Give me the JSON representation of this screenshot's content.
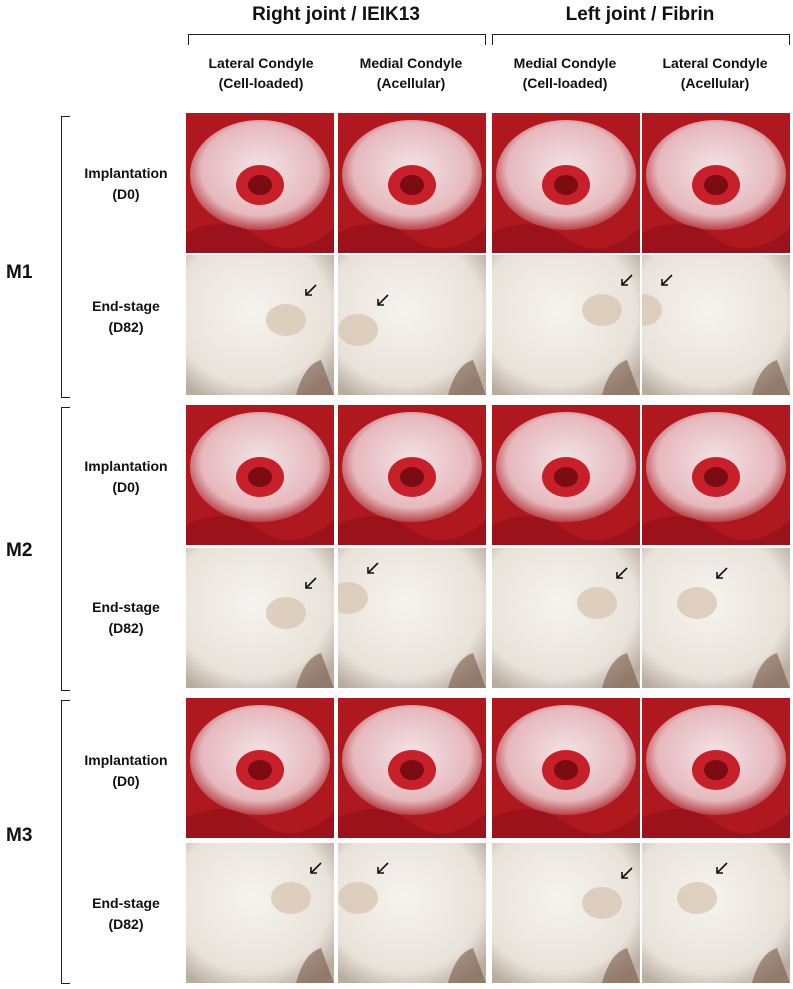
{
  "groups": [
    {
      "title": "Right joint / IEIK13"
    },
    {
      "title": "Left joint / Fibrin"
    }
  ],
  "columns": [
    {
      "line1": "Lateral Condyle",
      "line2": "(Cell-loaded)"
    },
    {
      "line1": "Medial Condyle",
      "line2": "(Acellular)"
    },
    {
      "line1": "Medial Condyle",
      "line2": "(Cell-loaded)"
    },
    {
      "line1": "Lateral Condyle",
      "line2": "(Acellular)"
    }
  ],
  "mice": [
    {
      "label": "M1",
      "rows": [
        {
          "line1": "Implantation",
          "line2": "(D0)"
        },
        {
          "line1": "End-stage",
          "line2": "(D82)"
        }
      ]
    },
    {
      "label": "M2",
      "rows": [
        {
          "line1": "Implantation",
          "line2": "(D0)"
        },
        {
          "line1": "End-stage",
          "line2": "(D82)"
        }
      ]
    },
    {
      "label": "M3",
      "rows": [
        {
          "line1": "Implantation",
          "line2": "(D0)"
        },
        {
          "line1": "End-stage",
          "line2": "(D82)"
        }
      ]
    }
  ],
  "colors": {
    "implant_tissue": "#c8202a",
    "implant_cartilage": "#f2e4e6",
    "endstage_cartilage": "#e8e2da",
    "arrow": "#111111"
  }
}
